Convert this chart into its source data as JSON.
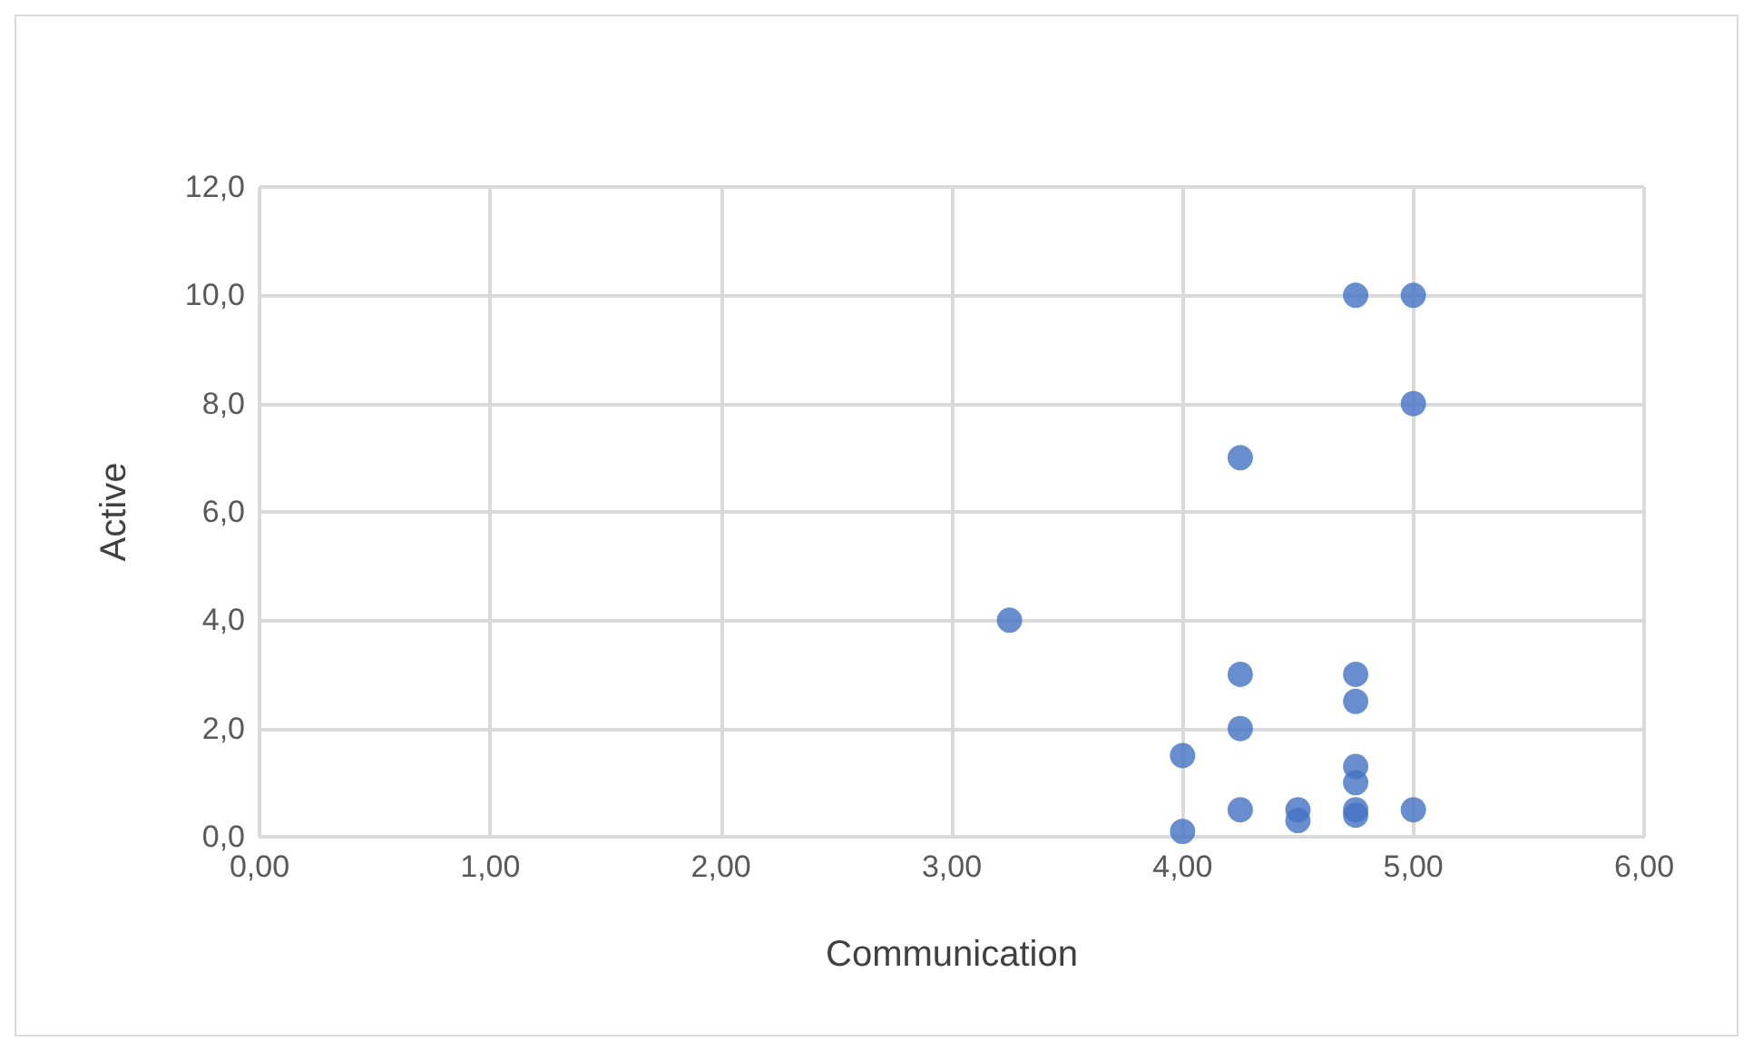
{
  "chart_data": {
    "type": "scatter",
    "xlabel": "Communication",
    "ylabel": "Active",
    "x": [
      3.25,
      4.0,
      4.0,
      4.25,
      4.25,
      4.25,
      4.25,
      4.5,
      4.5,
      4.75,
      4.75,
      4.75,
      4.75,
      4.75,
      4.75,
      4.75,
      5.0,
      5.0,
      5.0
    ],
    "series": [
      {
        "color": "#4472c4",
        "values": [
          4.0,
          1.5,
          0.1,
          7.0,
          3.0,
          2.0,
          0.5,
          0.5,
          0.3,
          10.0,
          3.0,
          2.5,
          1.3,
          1.0,
          0.5,
          0.4,
          10.0,
          8.0,
          0.5
        ]
      }
    ],
    "xlim": [
      0,
      6
    ],
    "xticks": [
      {
        "value": 0,
        "label": "0,00"
      },
      {
        "value": 1,
        "label": "1,00"
      },
      {
        "value": 2,
        "label": "2,00"
      },
      {
        "value": 3,
        "label": "3,00"
      },
      {
        "value": 4,
        "label": "4,00"
      },
      {
        "value": 5,
        "label": "5,00"
      },
      {
        "value": 6,
        "label": "6,00"
      }
    ],
    "ylim": [
      0,
      12
    ],
    "yticks": [
      {
        "value": 0,
        "label": "0,0"
      },
      {
        "value": 2,
        "label": "2,0"
      },
      {
        "value": 4,
        "label": "4,0"
      },
      {
        "value": 6,
        "label": "6,0"
      },
      {
        "value": 8,
        "label": "8,0"
      },
      {
        "value": 10,
        "label": "10,0"
      },
      {
        "value": 12,
        "label": "12,0"
      }
    ],
    "grid": true,
    "marker": "circle"
  }
}
